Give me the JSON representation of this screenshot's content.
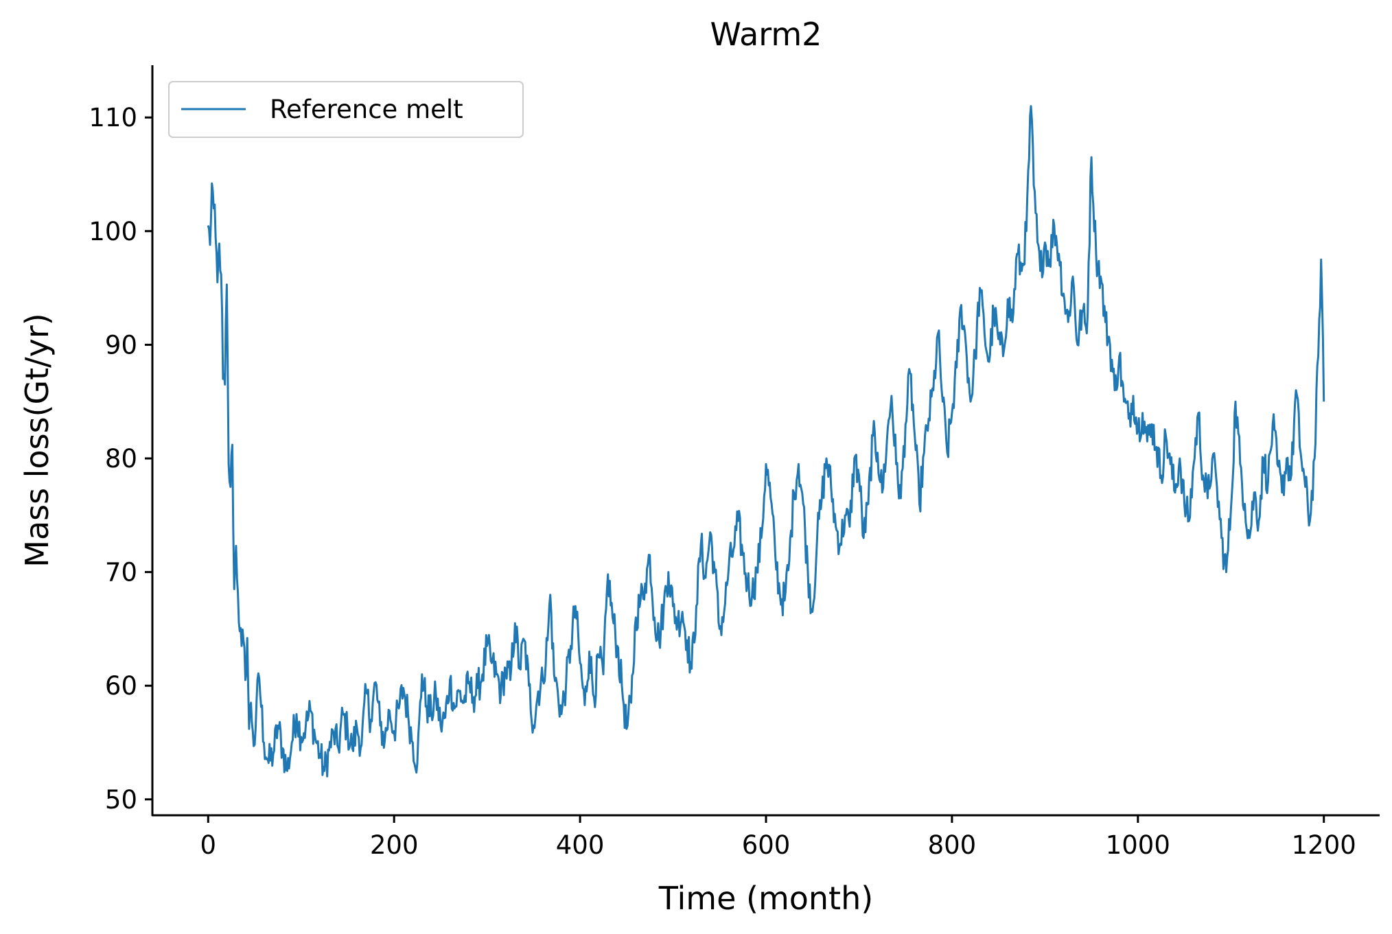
{
  "chart_data": {
    "type": "line",
    "title": "Warm2",
    "xlabel": "Time (month)",
    "ylabel": "Mass loss(Gt/yr)",
    "xlim": [
      -60,
      1260
    ],
    "ylim": [
      48.6,
      114.6
    ],
    "xticks": [
      0,
      200,
      400,
      600,
      800,
      1000,
      1200
    ],
    "yticks": [
      50,
      60,
      70,
      80,
      90,
      100,
      110
    ],
    "grid": false,
    "legend_position": "upper-left",
    "colors": {
      "series": "#1f77b4",
      "axis": "#000000"
    },
    "series": [
      {
        "name": "Reference melt",
        "anchors": [
          [
            0,
            100.5
          ],
          [
            2,
            98.8
          ],
          [
            4,
            104.2
          ],
          [
            6,
            102
          ],
          [
            8,
            99.5
          ],
          [
            10,
            95.5
          ],
          [
            12,
            98.9
          ],
          [
            14,
            96.2
          ],
          [
            16,
            87
          ],
          [
            18,
            86.5
          ],
          [
            20,
            95.3
          ],
          [
            22,
            79.5
          ],
          [
            24,
            77.5
          ],
          [
            26,
            81.2
          ],
          [
            28,
            68.5
          ],
          [
            30,
            72.3
          ],
          [
            32,
            68.2
          ],
          [
            34,
            64.8
          ],
          [
            36,
            63.5
          ],
          [
            38,
            64
          ],
          [
            40,
            60.5
          ],
          [
            42,
            64.2
          ],
          [
            44,
            56.2
          ],
          [
            46,
            58.5
          ],
          [
            48,
            56
          ],
          [
            50,
            54.8
          ],
          [
            52,
            58.5
          ],
          [
            55,
            60.6
          ],
          [
            60,
            55
          ],
          [
            65,
            53.2
          ],
          [
            70,
            54
          ],
          [
            75,
            56.5
          ],
          [
            80,
            54.5
          ],
          [
            85,
            52.5
          ],
          [
            90,
            55
          ],
          [
            95,
            57.5
          ],
          [
            100,
            55.5
          ],
          [
            105,
            56.5
          ],
          [
            110,
            57.8
          ],
          [
            115,
            55.5
          ],
          [
            120,
            54
          ],
          [
            125,
            52.5
          ],
          [
            130,
            54.3
          ],
          [
            135,
            55.8
          ],
          [
            140,
            54.5
          ],
          [
            145,
            57.5
          ],
          [
            150,
            56
          ],
          [
            155,
            54.5
          ],
          [
            160,
            56.3
          ],
          [
            165,
            54.8
          ],
          [
            170,
            59.5
          ],
          [
            175,
            57
          ],
          [
            180,
            60.3
          ],
          [
            185,
            56.5
          ],
          [
            190,
            55.2
          ],
          [
            195,
            57.8
          ],
          [
            200,
            56
          ],
          [
            205,
            58
          ],
          [
            210,
            59.8
          ],
          [
            215,
            57.5
          ],
          [
            220,
            55
          ],
          [
            225,
            53.2
          ],
          [
            230,
            61
          ],
          [
            235,
            58.2
          ],
          [
            240,
            57.5
          ],
          [
            245,
            59.2
          ],
          [
            250,
            56.5
          ],
          [
            255,
            57.2
          ],
          [
            260,
            60.5
          ],
          [
            265,
            58
          ],
          [
            270,
            59.5
          ],
          [
            275,
            58.5
          ],
          [
            280,
            60.2
          ],
          [
            285,
            59
          ],
          [
            290,
            59.8
          ],
          [
            295,
            61
          ],
          [
            300,
            63.5
          ],
          [
            305,
            62
          ],
          [
            310,
            61
          ],
          [
            315,
            59.5
          ],
          [
            320,
            61.5
          ],
          [
            325,
            60.5
          ],
          [
            330,
            65.5
          ],
          [
            335,
            61.5
          ],
          [
            340,
            64
          ],
          [
            345,
            60
          ],
          [
            350,
            56.5
          ],
          [
            355,
            59.5
          ],
          [
            360,
            60.5
          ],
          [
            365,
            64
          ],
          [
            368,
            68
          ],
          [
            372,
            61
          ],
          [
            376,
            59.5
          ],
          [
            380,
            57.5
          ],
          [
            385,
            60.3
          ],
          [
            390,
            63.5
          ],
          [
            395,
            67
          ],
          [
            400,
            62
          ],
          [
            405,
            58.3
          ],
          [
            410,
            63
          ],
          [
            415,
            59
          ],
          [
            420,
            62.5
          ],
          [
            425,
            61
          ],
          [
            430,
            69.8
          ],
          [
            435,
            66
          ],
          [
            440,
            63.5
          ],
          [
            445,
            60
          ],
          [
            450,
            56.2
          ],
          [
            455,
            58.5
          ],
          [
            460,
            66
          ],
          [
            465,
            67.5
          ],
          [
            470,
            69
          ],
          [
            475,
            71.5
          ],
          [
            480,
            66
          ],
          [
            485,
            64
          ],
          [
            490,
            67
          ],
          [
            495,
            70
          ],
          [
            500,
            67
          ],
          [
            505,
            65.5
          ],
          [
            510,
            66.5
          ],
          [
            515,
            64
          ],
          [
            520,
            61.5
          ],
          [
            525,
            67
          ],
          [
            530,
            72.5
          ],
          [
            535,
            69.5
          ],
          [
            540,
            73.5
          ],
          [
            545,
            70
          ],
          [
            550,
            65
          ],
          [
            555,
            66.5
          ],
          [
            560,
            70.5
          ],
          [
            565,
            72
          ],
          [
            570,
            74.5
          ],
          [
            575,
            71.5
          ],
          [
            580,
            69
          ],
          [
            585,
            68
          ],
          [
            590,
            70
          ],
          [
            595,
            73
          ],
          [
            600,
            79.5
          ],
          [
            605,
            76.5
          ],
          [
            610,
            71.5
          ],
          [
            615,
            68
          ],
          [
            620,
            67.5
          ],
          [
            625,
            71
          ],
          [
            630,
            77
          ],
          [
            635,
            79.5
          ],
          [
            640,
            76
          ],
          [
            645,
            70
          ],
          [
            650,
            66.5
          ],
          [
            655,
            73
          ],
          [
            660,
            76.5
          ],
          [
            665,
            80
          ],
          [
            670,
            77.5
          ],
          [
            675,
            74
          ],
          [
            680,
            72.5
          ],
          [
            685,
            75
          ],
          [
            690,
            74
          ],
          [
            695,
            80
          ],
          [
            700,
            78.5
          ],
          [
            705,
            73
          ],
          [
            710,
            76
          ],
          [
            715,
            82
          ],
          [
            720,
            80.5
          ],
          [
            725,
            77
          ],
          [
            730,
            81.5
          ],
          [
            735,
            85.5
          ],
          [
            740,
            79.5
          ],
          [
            745,
            76.5
          ],
          [
            750,
            83
          ],
          [
            755,
            87.5
          ],
          [
            760,
            82
          ],
          [
            765,
            76
          ],
          [
            770,
            80.5
          ],
          [
            775,
            83.5
          ],
          [
            780,
            86
          ],
          [
            785,
            91
          ],
          [
            790,
            85
          ],
          [
            795,
            80.5
          ],
          [
            800,
            84
          ],
          [
            805,
            88
          ],
          [
            810,
            93.5
          ],
          [
            815,
            90
          ],
          [
            820,
            85
          ],
          [
            825,
            89
          ],
          [
            830,
            95
          ],
          [
            835,
            91
          ],
          [
            840,
            88.5
          ],
          [
            845,
            93
          ],
          [
            850,
            90.5
          ],
          [
            855,
            89
          ],
          [
            860,
            94
          ],
          [
            865,
            92
          ],
          [
            870,
            98
          ],
          [
            875,
            96.5
          ],
          [
            880,
            100
          ],
          [
            885,
            111
          ],
          [
            888,
            104
          ],
          [
            892,
            99
          ],
          [
            895,
            96.5
          ],
          [
            900,
            99
          ],
          [
            905,
            97.5
          ],
          [
            910,
            100.5
          ],
          [
            915,
            98
          ],
          [
            920,
            94.5
          ],
          [
            925,
            92
          ],
          [
            930,
            96
          ],
          [
            935,
            90
          ],
          [
            940,
            93
          ],
          [
            945,
            91
          ],
          [
            950,
            106.5
          ],
          [
            955,
            98
          ],
          [
            960,
            96
          ],
          [
            965,
            92
          ],
          [
            970,
            90
          ],
          [
            975,
            86
          ],
          [
            980,
            89
          ],
          [
            985,
            85
          ],
          [
            990,
            83.5
          ],
          [
            995,
            85.5
          ],
          [
            1000,
            82.5
          ],
          [
            1005,
            84
          ],
          [
            1010,
            81.5
          ],
          [
            1015,
            83
          ],
          [
            1020,
            81
          ],
          [
            1025,
            78.5
          ],
          [
            1030,
            82
          ],
          [
            1035,
            79.5
          ],
          [
            1040,
            77
          ],
          [
            1045,
            80
          ],
          [
            1050,
            76
          ],
          [
            1055,
            74.5
          ],
          [
            1060,
            79.5
          ],
          [
            1065,
            84
          ],
          [
            1070,
            78.5
          ],
          [
            1075,
            76.5
          ],
          [
            1080,
            80
          ],
          [
            1085,
            77.5
          ],
          [
            1090,
            73
          ],
          [
            1095,
            70
          ],
          [
            1100,
            75.5
          ],
          [
            1105,
            85
          ],
          [
            1110,
            79.5
          ],
          [
            1115,
            76
          ],
          [
            1120,
            73
          ],
          [
            1125,
            77
          ],
          [
            1130,
            74.5
          ],
          [
            1135,
            80
          ],
          [
            1140,
            78
          ],
          [
            1145,
            83
          ],
          [
            1150,
            79.5
          ],
          [
            1155,
            77
          ],
          [
            1160,
            80
          ],
          [
            1165,
            78.5
          ],
          [
            1170,
            86
          ],
          [
            1175,
            80.5
          ],
          [
            1180,
            77.5
          ],
          [
            1185,
            74.5
          ],
          [
            1190,
            80
          ],
          [
            1194,
            89
          ],
          [
            1197,
            97.5
          ],
          [
            1200,
            85
          ]
        ]
      }
    ]
  }
}
